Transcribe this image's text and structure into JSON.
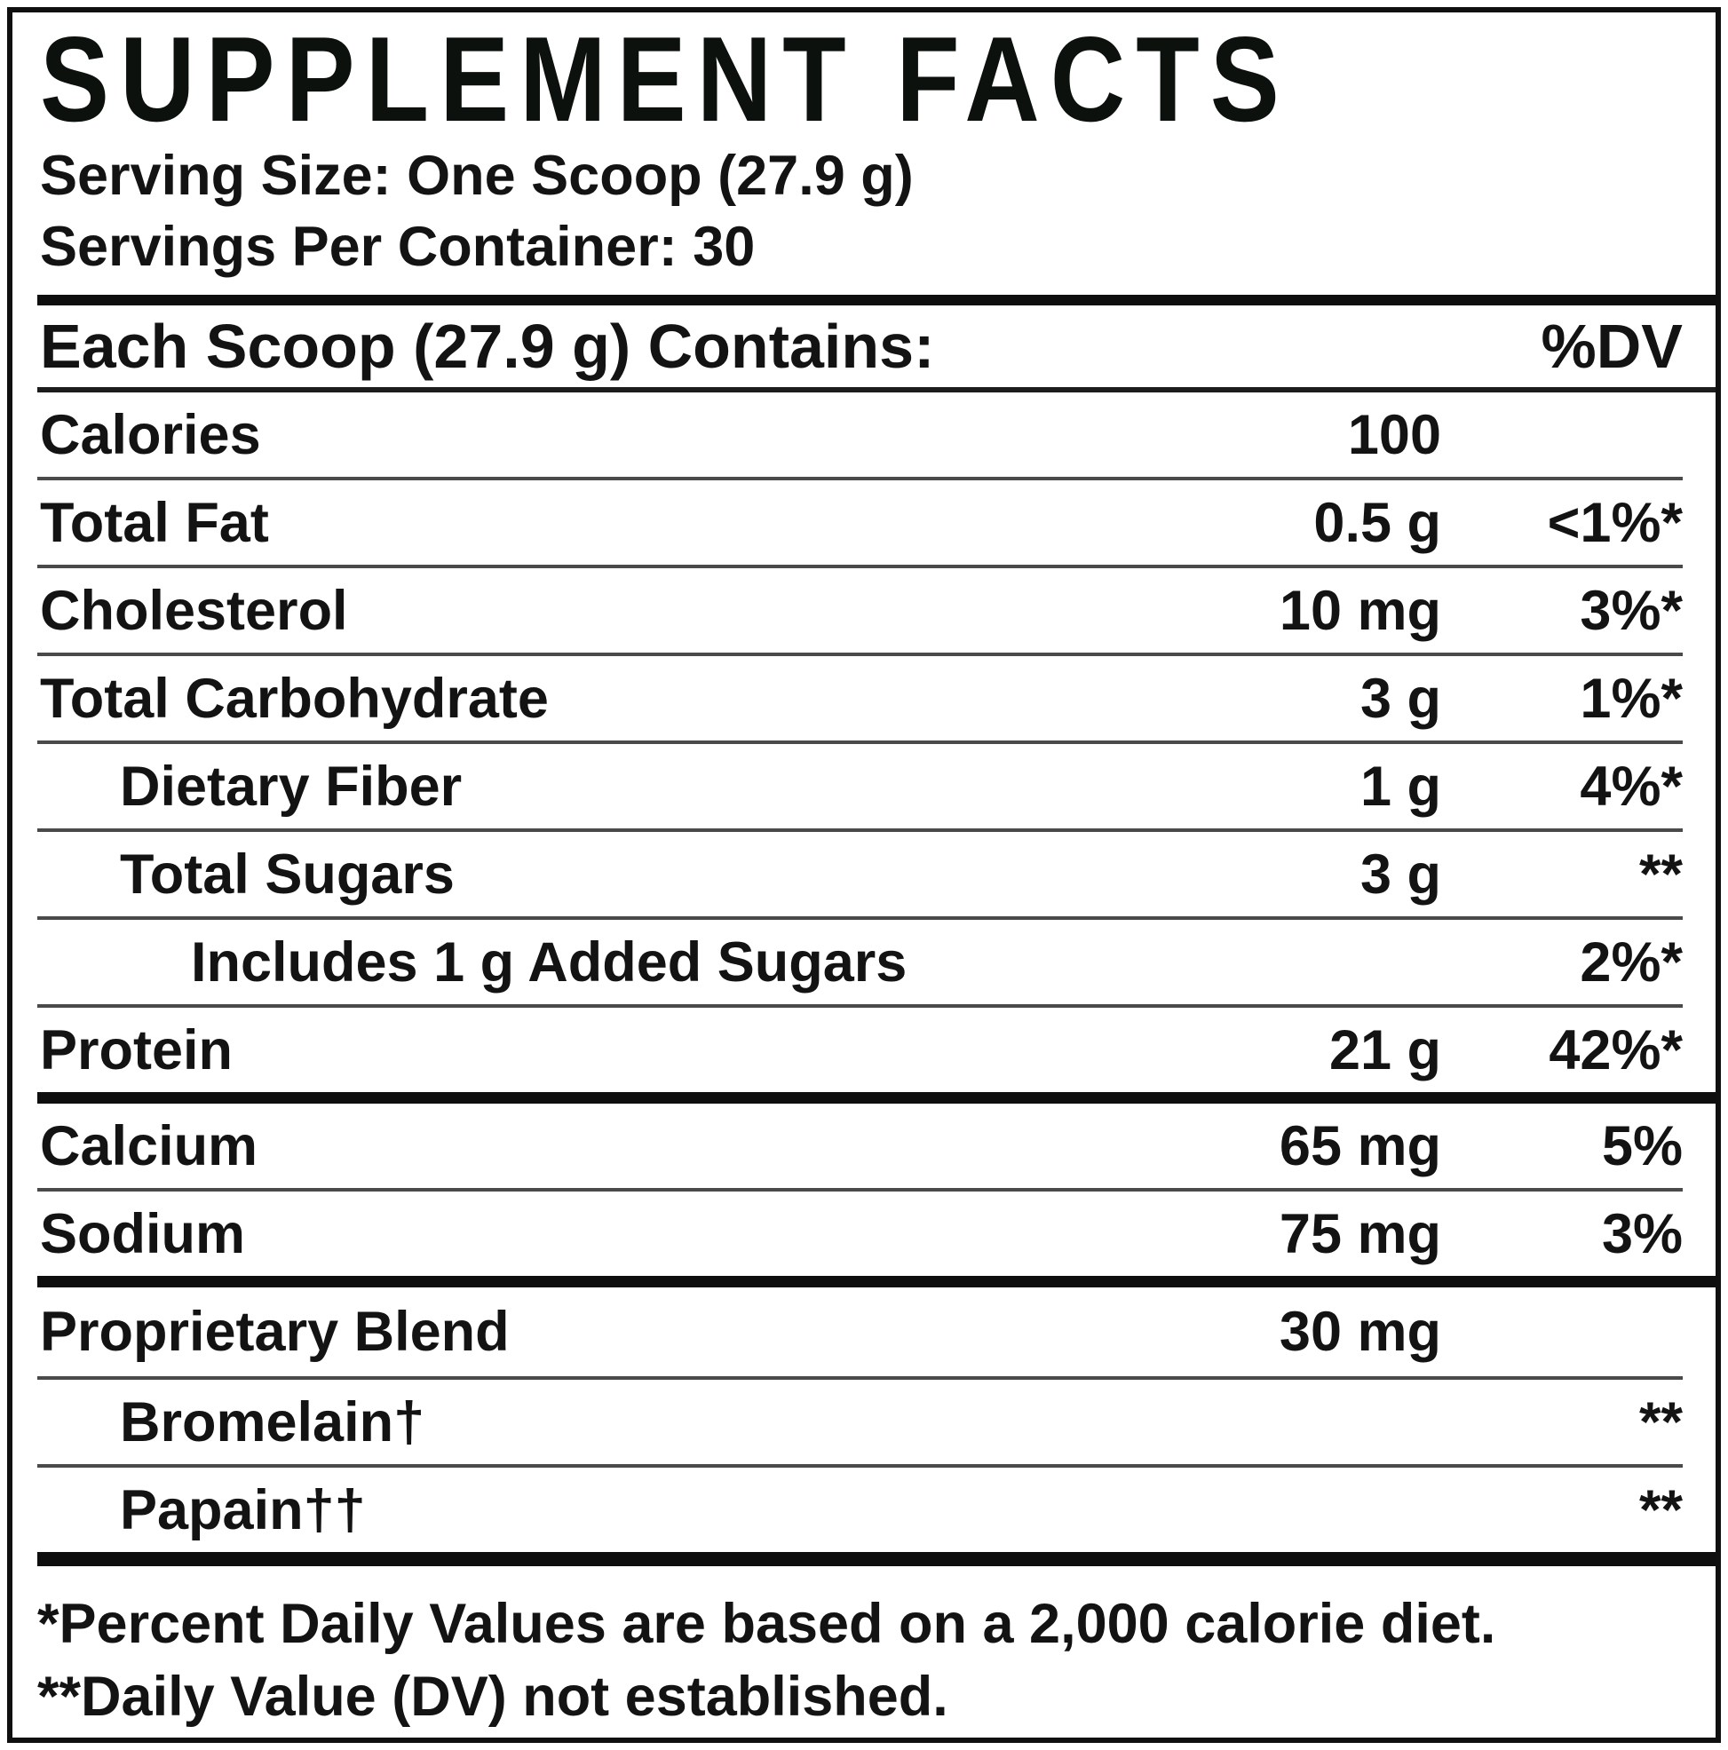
{
  "colors": {
    "ink": "#131313",
    "rule_light": "#4a4a4a",
    "rule_dark": "#0f0f0f"
  },
  "title": "SUPPLEMENT FACTS",
  "serving": {
    "size_line": "Serving Size: One Scoop (27.9 g)",
    "count_line": "Servings Per Container: 30"
  },
  "table": {
    "header_label": "Each Scoop (27.9 g) Contains:",
    "dv_header": "%DV",
    "rows": [
      {
        "label": "Calories",
        "indent": 0,
        "amount": "100",
        "dv": ""
      },
      {
        "label": "Total Fat",
        "indent": 0,
        "amount": "0.5 g",
        "dv": "<1%*"
      },
      {
        "label": "Cholesterol",
        "indent": 0,
        "amount": "10 mg",
        "dv": "3%*"
      },
      {
        "label": "Total Carbohydrate",
        "indent": 0,
        "amount": "3 g",
        "dv": "1%*"
      },
      {
        "label": "Dietary Fiber",
        "indent": 1,
        "amount": "1 g",
        "dv": "4%*"
      },
      {
        "label": "Total Sugars",
        "indent": 1,
        "amount": "3 g",
        "dv": "**"
      },
      {
        "label": "Includes 1 g Added Sugars",
        "indent": 2,
        "amount": "",
        "dv": "2%*"
      },
      {
        "label": "Protein",
        "indent": 0,
        "amount": "21 g",
        "dv": "42%*"
      },
      {
        "label": "Calcium",
        "indent": 0,
        "amount": "65 mg",
        "dv": "5%"
      },
      {
        "label": "Sodium",
        "indent": 0,
        "amount": "75 mg",
        "dv": "3%"
      },
      {
        "label": "Proprietary Blend",
        "indent": 0,
        "amount": "30 mg",
        "dv": ""
      },
      {
        "label": "Bromelain†",
        "indent": 1,
        "amount": "",
        "dv": "**"
      },
      {
        "label": "Papain††",
        "indent": 1,
        "amount": "",
        "dv": "**"
      }
    ]
  },
  "footnotes": [
    "*Percent Daily Values are based on a 2,000 calorie diet.",
    "**Daily Value (DV) not established."
  ]
}
